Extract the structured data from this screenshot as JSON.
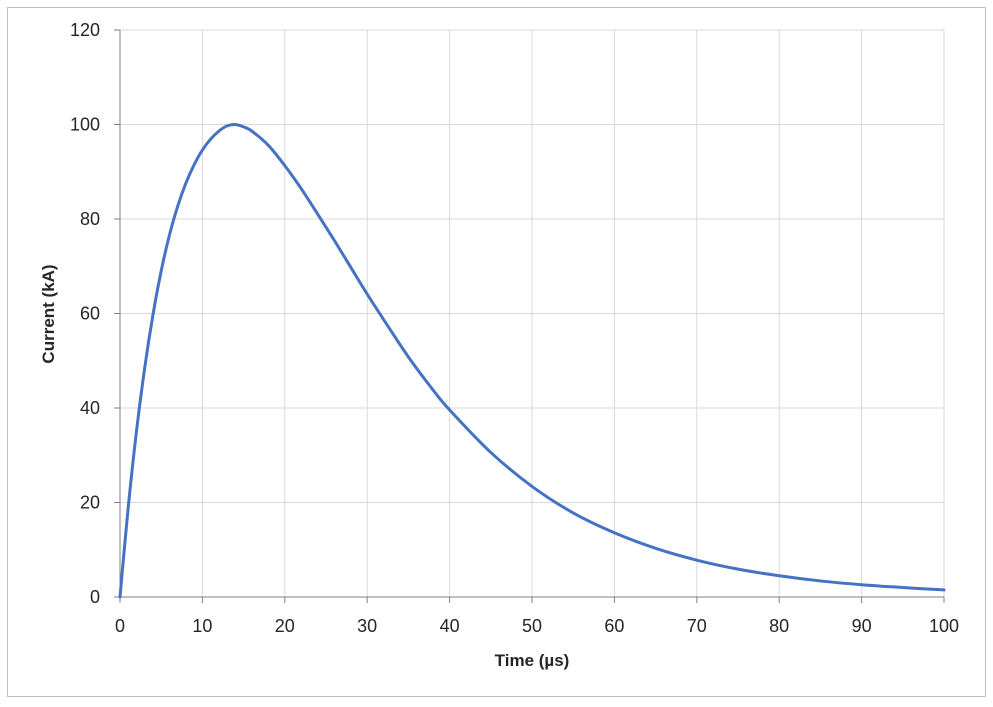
{
  "chart_data": {
    "type": "line",
    "title": "",
    "xlabel": "Time (µs)",
    "ylabel": "Current (kA)",
    "xlim": [
      0,
      100
    ],
    "ylim": [
      0,
      120
    ],
    "x_ticks": [
      0,
      10,
      20,
      30,
      40,
      50,
      60,
      70,
      80,
      90,
      100
    ],
    "y_ticks": [
      0,
      20,
      40,
      60,
      80,
      100,
      120
    ],
    "grid": true,
    "legend": "none",
    "series": [
      {
        "color": "#4472c4",
        "x": [
          0,
          1,
          2,
          3,
          4,
          5,
          6,
          7,
          8,
          9,
          10,
          11,
          12,
          13,
          14,
          15,
          16,
          18,
          20,
          22,
          24,
          26,
          28,
          30,
          32,
          35,
          38,
          40,
          45,
          50,
          55,
          60,
          65,
          70,
          75,
          80,
          85,
          90,
          95,
          100
        ],
        "y": [
          0,
          19.0,
          35.1,
          48.5,
          59.7,
          69.0,
          76.6,
          82.7,
          87.6,
          91.5,
          94.6,
          96.9,
          98.6,
          99.7,
          100.0,
          99.5,
          98.6,
          95.6,
          91.3,
          86.4,
          81.0,
          75.5,
          69.8,
          64.1,
          58.7,
          50.8,
          43.8,
          39.6,
          30.6,
          23.4,
          17.8,
          13.6,
          10.3,
          7.8,
          5.9,
          4.5,
          3.4,
          2.6,
          2.0,
          1.5
        ]
      }
    ]
  }
}
